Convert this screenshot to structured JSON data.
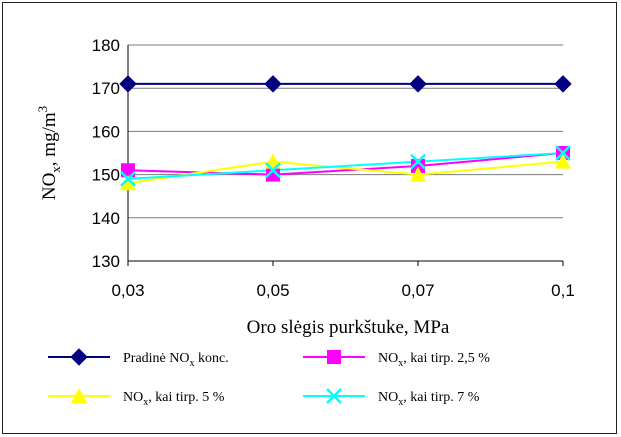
{
  "chart_data": {
    "type": "line",
    "xlabel": "Oro slėgis purkštuke, MPa",
    "ylabel_main": "NO",
    "ylabel_sub": "x",
    "ylabel_rest": ", mg/m",
    "ylabel_sup": "3",
    "categories": [
      "0,03",
      "0,05",
      "0,07",
      "0,1"
    ],
    "ylim": [
      130,
      180
    ],
    "yticks": [
      130,
      140,
      150,
      160,
      170,
      180
    ],
    "grid": "horizontal",
    "legend_position": "bottom",
    "series": [
      {
        "name_parts": [
          "Pradinė NO",
          "x",
          " konc."
        ],
        "values": [
          171,
          171,
          171,
          171
        ],
        "color": "#000080",
        "marker": "diamond"
      },
      {
        "name_parts": [
          "NO",
          "x",
          ", kai tirp. 2,5 %"
        ],
        "values": [
          151,
          150,
          152,
          155
        ],
        "color": "#ff00ff",
        "marker": "square"
      },
      {
        "name_parts": [
          "NO",
          "x",
          ", kai tirp. 5 %"
        ],
        "values": [
          148,
          153,
          150,
          153
        ],
        "color": "#ffff00",
        "marker": "triangle"
      },
      {
        "name_parts": [
          "NO",
          "x",
          ", kai tirp. 7 %"
        ],
        "values": [
          149,
          151,
          153,
          155
        ],
        "color": "#00ffff",
        "marker": "x"
      }
    ]
  }
}
